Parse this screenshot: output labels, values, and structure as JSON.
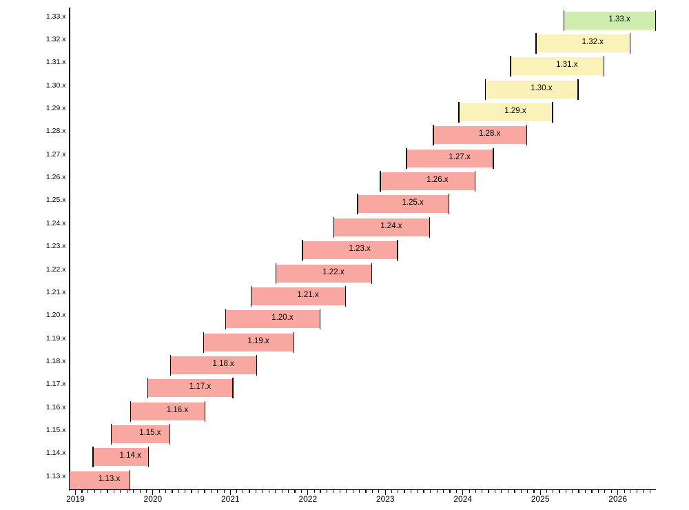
{
  "chart_data": {
    "type": "gantt",
    "description": "Version support timeline bar chart",
    "grid": false,
    "legend": "none",
    "x_axis": {
      "tick_labels": [
        "2019",
        "2020",
        "2021",
        "2022",
        "2023",
        "2024",
        "2025",
        "2026"
      ],
      "range_start": "2018-12-03",
      "range_end": "2026-06-28",
      "minor_ticks": "monthly"
    },
    "y_axis": {
      "tick_labels": [
        "1.13.x",
        "1.14.x",
        "1.15.x",
        "1.16.x",
        "1.17.x",
        "1.18.x",
        "1.19.x",
        "1.20.x",
        "1.21.x",
        "1.22.x",
        "1.23.x",
        "1.24.x",
        "1.25.x",
        "1.26.x",
        "1.27.x",
        "1.28.x",
        "1.29.x",
        "1.30.x",
        "1.31.x",
        "1.32.x",
        "1.33.x"
      ]
    },
    "status_colors": {
      "end_of_life": "#F8A8A1",
      "supported": "#FAF2B9",
      "latest": "#CDEDAD"
    },
    "bars": [
      {
        "label": "1.13.x",
        "start": "2018-12-03",
        "end": "2019-09-15",
        "status": "end_of_life"
      },
      {
        "label": "1.14.x",
        "start": "2019-03-25",
        "end": "2019-12-11",
        "status": "end_of_life"
      },
      {
        "label": "1.15.x",
        "start": "2019-06-19",
        "end": "2020-03-20",
        "status": "end_of_life"
      },
      {
        "label": "1.16.x",
        "start": "2019-09-18",
        "end": "2020-09-02",
        "status": "end_of_life"
      },
      {
        "label": "1.17.x",
        "start": "2019-12-09",
        "end": "2021-01-13",
        "status": "end_of_life"
      },
      {
        "label": "1.18.x",
        "start": "2020-03-25",
        "end": "2021-05-05",
        "status": "end_of_life"
      },
      {
        "label": "1.19.x",
        "start": "2020-08-26",
        "end": "2021-10-28",
        "status": "end_of_life"
      },
      {
        "label": "1.20.x",
        "start": "2020-12-08",
        "end": "2022-02-28",
        "status": "end_of_life"
      },
      {
        "label": "1.21.x",
        "start": "2021-04-08",
        "end": "2022-06-28",
        "status": "end_of_life"
      },
      {
        "label": "1.22.x",
        "start": "2021-08-04",
        "end": "2022-10-28",
        "status": "end_of_life"
      },
      {
        "label": "1.23.x",
        "start": "2021-12-07",
        "end": "2023-02-28",
        "status": "end_of_life"
      },
      {
        "label": "1.24.x",
        "start": "2022-05-03",
        "end": "2023-07-28",
        "status": "end_of_life"
      },
      {
        "label": "1.25.x",
        "start": "2022-08-23",
        "end": "2023-10-27",
        "status": "end_of_life"
      },
      {
        "label": "1.26.x",
        "start": "2022-12-09",
        "end": "2024-02-28",
        "status": "end_of_life"
      },
      {
        "label": "1.27.x",
        "start": "2023-04-11",
        "end": "2024-05-24",
        "status": "end_of_life"
      },
      {
        "label": "1.28.x",
        "start": "2023-08-15",
        "end": "2024-10-28",
        "status": "end_of_life"
      },
      {
        "label": "1.29.x",
        "start": "2023-12-13",
        "end": "2025-02-28",
        "status": "supported"
      },
      {
        "label": "1.30.x",
        "start": "2024-04-17",
        "end": "2025-06-28",
        "status": "supported"
      },
      {
        "label": "1.31.x",
        "start": "2024-08-13",
        "end": "2025-10-28",
        "status": "supported"
      },
      {
        "label": "1.32.x",
        "start": "2024-12-11",
        "end": "2026-02-28",
        "status": "supported"
      },
      {
        "label": "1.33.x",
        "start": "2025-04-23",
        "end": "2026-06-28",
        "status": "latest"
      }
    ]
  }
}
